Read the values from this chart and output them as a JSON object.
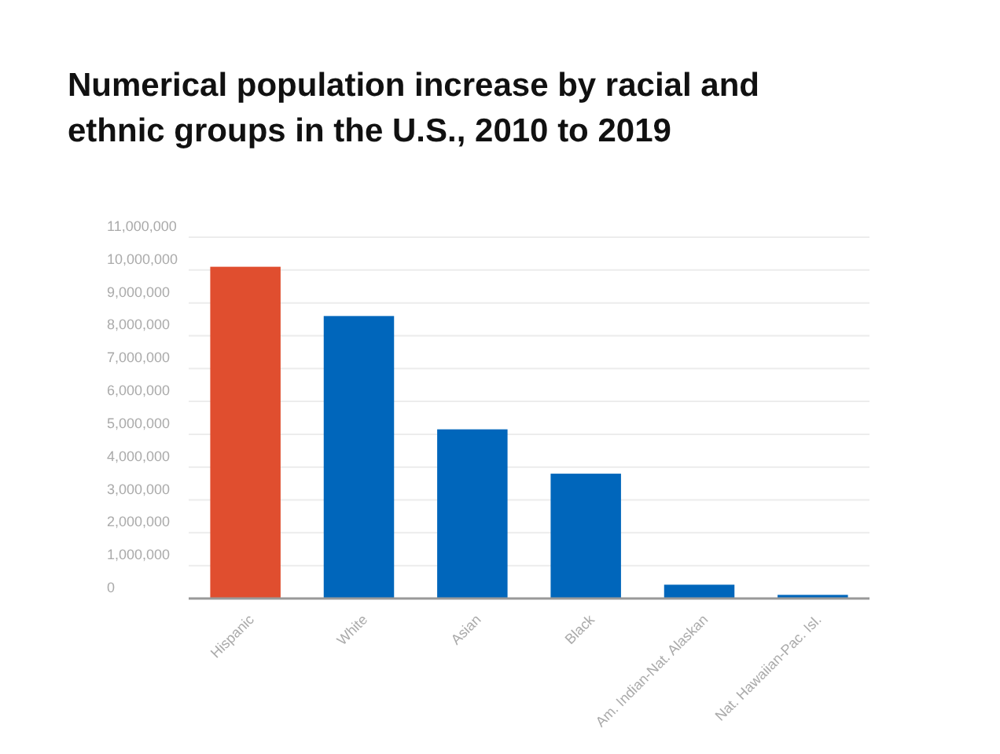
{
  "chart_data": {
    "type": "bar",
    "title": "Numerical population increase by racial and ethnic groups in the U.S., 2010 to 2019",
    "categories": [
      "Hispanic",
      "White",
      "Asian",
      "Black",
      "Am. Indian-Nat. Alaskan",
      "Nat. Hawaiian-Pac. Isl."
    ],
    "values": [
      10100000,
      8600000,
      5150000,
      3800000,
      420000,
      110000
    ],
    "colors": [
      "#e04e2f",
      "#0066bb",
      "#0066bb",
      "#0066bb",
      "#0066bb",
      "#0066bb"
    ],
    "ylim": [
      0,
      11000000
    ],
    "yticks": [
      {
        "value": 0,
        "label": "0"
      },
      {
        "value": 1000000,
        "label": "1,000,000"
      },
      {
        "value": 2000000,
        "label": "2,000,000"
      },
      {
        "value": 3000000,
        "label": "3,000,000"
      },
      {
        "value": 4000000,
        "label": "4,000,000"
      },
      {
        "value": 5000000,
        "label": "5,000,000"
      },
      {
        "value": 6000000,
        "label": "6,000,000"
      },
      {
        "value": 7000000,
        "label": "7,000,000"
      },
      {
        "value": 8000000,
        "label": "8,000,000"
      },
      {
        "value": 9000000,
        "label": "9,000,000"
      },
      {
        "value": 10000000,
        "label": "10,000,000"
      },
      {
        "value": 11000000,
        "label": "11,000,000"
      }
    ],
    "grid": "y"
  }
}
